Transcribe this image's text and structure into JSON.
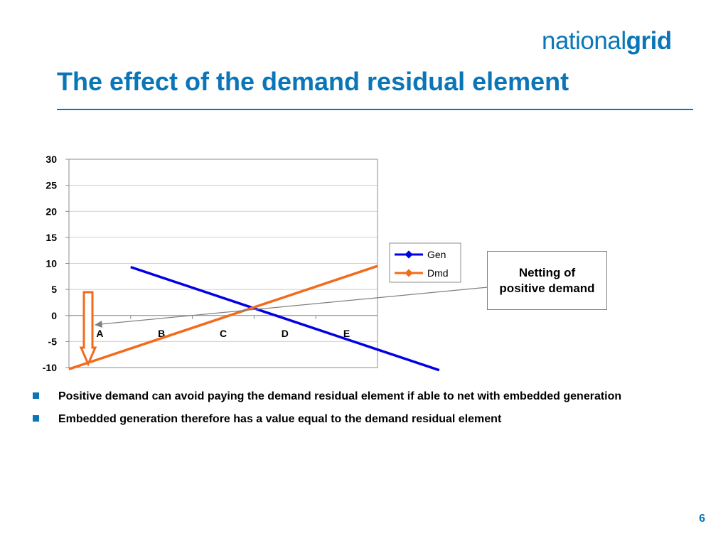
{
  "logo": {
    "prefix": "national",
    "bold": "grid"
  },
  "title": "The effect of the demand residual element",
  "chart_data": {
    "type": "line",
    "categories": [
      "A",
      "B",
      "C",
      "D",
      "E"
    ],
    "ylim": [
      -10,
      30
    ],
    "yticks": [
      30,
      25,
      20,
      15,
      10,
      5,
      0,
      -5,
      -10
    ],
    "grid": true,
    "legend_position": "right",
    "series": [
      {
        "name": "Gen",
        "x": [
          0.5,
          5.5
        ],
        "values": [
          9.3,
          -10.5
        ],
        "color": "#0000e6"
      },
      {
        "name": "Dmd",
        "x": [
          -0.5,
          4.5
        ],
        "values": [
          -10.3,
          9.5
        ],
        "color": "#f26b1d"
      }
    ]
  },
  "callout": {
    "text": "Netting of positive demand"
  },
  "bullets": [
    "Positive demand can avoid paying the demand residual element if able to net with embedded generation",
    "Embedded generation therefore has a value equal to the demand residual element"
  ],
  "page_number": "6",
  "colors": {
    "brand_blue": "#0a76b7",
    "arrow_orange": "#f26b1d",
    "pointer_gray": "#808080"
  }
}
